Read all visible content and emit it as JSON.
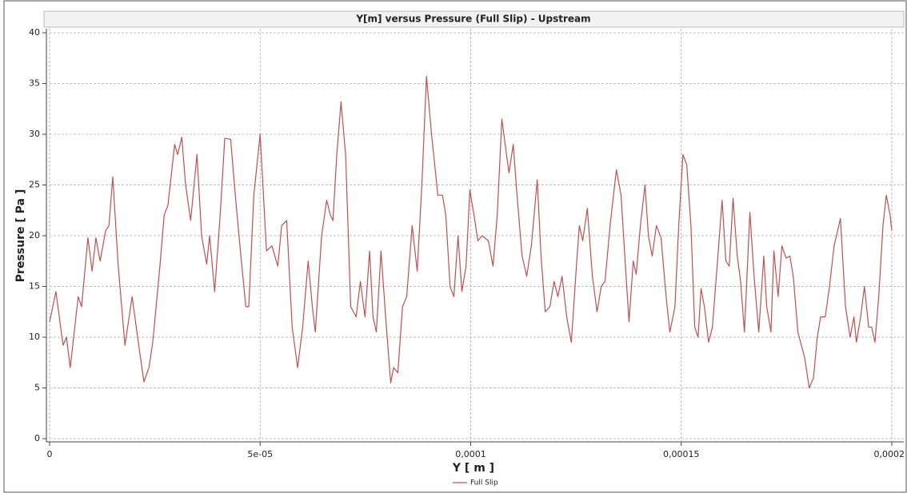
{
  "chart_data": {
    "type": "line",
    "title": "Y[m] versus Pressure (Full Slip) - Upstream",
    "xlabel": "Y [ m ]",
    "ylabel": "Pressure [ Pa ]",
    "x": [
      0,
      1.5e-06,
      3.2e-06,
      4e-06,
      4.9e-06,
      6.8e-06,
      7.6e-06,
      9.1e-06,
      1.01e-05,
      1.1e-05,
      1.2e-05,
      1.33e-05,
      1.41e-05,
      1.5e-05,
      1.63e-05,
      1.79e-05,
      1.96e-05,
      2.09e-05,
      2.24e-05,
      2.36e-05,
      2.45e-05,
      2.62e-05,
      2.72e-05,
      2.81e-05,
      2.97e-05,
      3.04e-05,
      3.14e-05,
      3.23e-05,
      3.35e-05,
      3.5e-05,
      3.61e-05,
      3.73e-05,
      3.8e-05,
      3.92e-05,
      4.05e-05,
      4.16e-05,
      4.3e-05,
      4.41e-05,
      4.52e-05,
      4.66e-05,
      4.73e-05,
      4.85e-05,
      5e-05,
      5.15e-05,
      5.28e-05,
      5.42e-05,
      5.51e-05,
      5.63e-05,
      5.76e-05,
      5.89e-05,
      6.01e-05,
      6.14e-05,
      6.24e-05,
      6.31e-05,
      6.46e-05,
      6.58e-05,
      6.67e-05,
      6.73e-05,
      6.82e-05,
      6.92e-05,
      7.03e-05,
      7.15e-05,
      7.28e-05,
      7.38e-05,
      7.49e-05,
      7.6e-05,
      7.68e-05,
      7.76e-05,
      7.87e-05,
      7.98e-05,
      8.1e-05,
      8.17e-05,
      8.27e-05,
      8.38e-05,
      8.48e-05,
      8.61e-05,
      8.73e-05,
      8.84e-05,
      8.95e-05,
      9.07e-05,
      9.22e-05,
      9.33e-05,
      9.41e-05,
      9.51e-05,
      9.6e-05,
      9.7e-05,
      9.79e-05,
      9.89e-05,
      9.98e-05,
      0.0001008,
      0.0001017,
      0.0001027,
      0.0001042,
      0.0001053,
      0.0001063,
      0.0001074,
      0.0001085,
      0.0001091,
      0.0001101,
      0.000111,
      0.0001122,
      0.0001133,
      0.0001144,
      0.0001158,
      0.0001167,
      0.0001177,
      0.0001188,
      0.0001198,
      0.0001207,
      0.0001217,
      0.0001228,
      0.0001239,
      0.0001251,
      0.0001258,
      0.0001266,
      0.0001277,
      0.0001289,
      0.00013,
      0.000131,
      0.0001319,
      0.0001331,
      0.0001346,
      0.0001357,
      0.0001369,
      0.0001376,
      0.0001386,
      0.0001393,
      0.0001403,
      0.0001414,
      0.0001422,
      0.0001431,
      0.0001441,
      0.0001452,
      0.0001464,
      0.0001473,
      0.0001485,
      0.0001494,
      0.0001504,
      0.0001513,
      0.0001523,
      0.0001532,
      0.000154,
      0.0001547,
      0.0001555,
      0.0001565,
      0.0001574,
      0.0001587,
      0.0001597,
      0.0001606,
      0.0001614,
      0.0001623,
      0.0001633,
      0.0001641,
      0.000165,
      0.0001663,
      0.0001673,
      0.0001684,
      0.0001696,
      0.0001703,
      0.0001713,
      0.000172,
      0.000173,
      0.0001739,
      0.0001749,
      0.0001758,
      0.0001766,
      0.0001777,
      0.0001793,
      0.0001804,
      0.0001814,
      0.0001823,
      0.0001831,
      0.0001842,
      0.0001852,
      0.0001863,
      0.0001878,
      0.000189,
      0.0001901,
      0.000191,
      0.0001916,
      0.0001926,
      0.0001935,
      0.0001945,
      0.0001952,
      0.000196,
      0.0001969,
      0.0001979,
      0.0001987,
      0.0001996,
      0.0002
    ],
    "series": [
      {
        "name": "Full Slip",
        "color": "#c0504d",
        "values": [
          11.5,
          14.5,
          9.2,
          10,
          7,
          14,
          13,
          19.8,
          16.5,
          19.8,
          17.5,
          20.5,
          21,
          25.8,
          17,
          9.2,
          14,
          10,
          5.6,
          7,
          9.5,
          17,
          22,
          23,
          29,
          28,
          29.7,
          25,
          21.5,
          28,
          20,
          17.2,
          20,
          14.5,
          22,
          29.6,
          29.5,
          24,
          19,
          13,
          13,
          24,
          30,
          18.5,
          19,
          17,
          21,
          21.5,
          11,
          7,
          11,
          17.5,
          13,
          10.5,
          20,
          23.5,
          22,
          21.5,
          28,
          33.2,
          28,
          13,
          12,
          15.5,
          12,
          18.5,
          12,
          10.5,
          18.5,
          12,
          5.5,
          7,
          6.5,
          13,
          14,
          21,
          16.5,
          25,
          35.7,
          30,
          24,
          24,
          22,
          15,
          14,
          20,
          14.5,
          17,
          24.5,
          22,
          19.5,
          20,
          19.5,
          17,
          22,
          31.5,
          28,
          26.2,
          29,
          24,
          18,
          16,
          19,
          25.5,
          18,
          12.5,
          13,
          15.5,
          14,
          16,
          12,
          9.5,
          17,
          21,
          19.5,
          22.7,
          16,
          12.5,
          15,
          15.5,
          21,
          26.5,
          24,
          16,
          11.5,
          17.5,
          16.2,
          21,
          25,
          20,
          18,
          21,
          19.8,
          14,
          10.5,
          13,
          21,
          28,
          27,
          21,
          11,
          10,
          14.8,
          13,
          9.5,
          11,
          18,
          23.5,
          17.5,
          17,
          23.7,
          18,
          15.5,
          10.5,
          22.3,
          16,
          10.5,
          18,
          13,
          10.5,
          18.5,
          14,
          19,
          17.8,
          18,
          16,
          10.5,
          8,
          5,
          6,
          10,
          12,
          12,
          15,
          19,
          21.7,
          13,
          10,
          12,
          9.5,
          12,
          15,
          11,
          11,
          9.5,
          14,
          21,
          24,
          22,
          20.5
        ]
      }
    ],
    "xlim": [
      0,
      0.0002
    ],
    "ylim": [
      0,
      40
    ],
    "xticks": [
      0,
      {
        "value": 5e-05,
        "label": "5e-05"
      },
      {
        "value": 0.0001,
        "label": "0,0001"
      },
      {
        "value": 0.00015,
        "label": "0,00015"
      },
      {
        "value": 0.0002,
        "label": "0,0002"
      }
    ],
    "yticks": [
      0,
      5,
      10,
      15,
      20,
      25,
      30,
      35,
      40
    ],
    "grid": true,
    "legend": "bottom"
  }
}
